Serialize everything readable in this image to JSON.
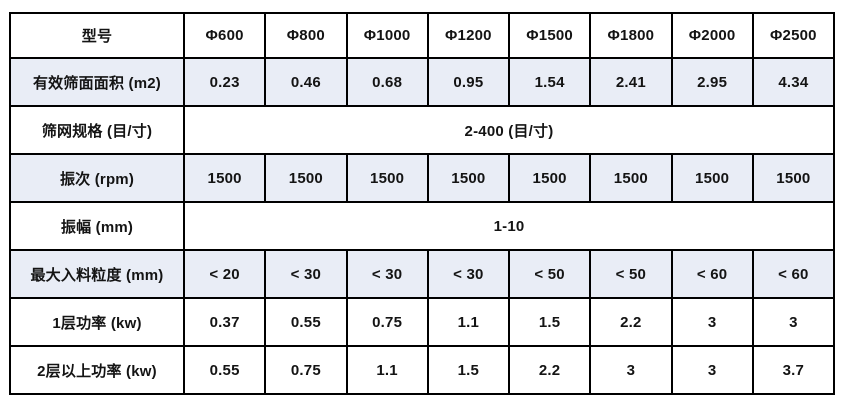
{
  "table": {
    "corner_label": "型号",
    "columns": [
      "Φ600",
      "Φ800",
      "Φ1000",
      "Φ1200",
      "Φ1500",
      "Φ1800",
      "Φ2000",
      "Φ2500"
    ],
    "rows": [
      {
        "label": "有效筛面面积 (m2)",
        "shaded": true,
        "values": [
          "0.23",
          "0.46",
          "0.68",
          "0.95",
          "1.54",
          "2.41",
          "2.95",
          "4.34"
        ]
      },
      {
        "label": "筛网规格 (目/寸)",
        "shaded": false,
        "merged": "2-400 (目/寸)"
      },
      {
        "label": "振次 (rpm)",
        "shaded": true,
        "values": [
          "1500",
          "1500",
          "1500",
          "1500",
          "1500",
          "1500",
          "1500",
          "1500"
        ]
      },
      {
        "label": "振幅 (mm)",
        "shaded": false,
        "merged": "1-10"
      },
      {
        "label": "最大入料粒度 (mm)",
        "shaded": true,
        "values": [
          "< 20",
          "< 30",
          "< 30",
          "< 30",
          "< 50",
          "< 50",
          "< 60",
          "< 60"
        ]
      },
      {
        "label": "1层功率 (kw)",
        "shaded": false,
        "values": [
          "0.37",
          "0.55",
          "0.75",
          "1.1",
          "1.5",
          "2.2",
          "3",
          "3"
        ]
      },
      {
        "label": "2层以上功率 (kw)",
        "shaded": false,
        "values": [
          "0.55",
          "0.75",
          "1.1",
          "1.5",
          "2.2",
          "3",
          "3",
          "3.7"
        ]
      }
    ],
    "colors": {
      "header_bg": "#4a7ebb",
      "header_text": "#ffffff",
      "shaded_row_bg": "#e9edf6",
      "border": "#000000"
    }
  },
  "chart_data": {
    "type": "table",
    "title": "",
    "columns": [
      "型号",
      "Φ600",
      "Φ800",
      "Φ1000",
      "Φ1200",
      "Φ1500",
      "Φ1800",
      "Φ2000",
      "Φ2500"
    ],
    "rows": [
      [
        "有效筛面面积 (m2)",
        "0.23",
        "0.46",
        "0.68",
        "0.95",
        "1.54",
        "2.41",
        "2.95",
        "4.34"
      ],
      [
        "筛网规格 (目/寸)",
        "2-400 (目/寸)"
      ],
      [
        "振次 (rpm)",
        "1500",
        "1500",
        "1500",
        "1500",
        "1500",
        "1500",
        "1500",
        "1500"
      ],
      [
        "振幅 (mm)",
        "1-10"
      ],
      [
        "最大入料粒度 (mm)",
        "< 20",
        "< 30",
        "< 30",
        "< 30",
        "< 50",
        "< 50",
        "< 60",
        "< 60"
      ],
      [
        "1层功率 (kw)",
        "0.37",
        "0.55",
        "0.75",
        "1.1",
        "1.5",
        "2.2",
        "3",
        "3"
      ],
      [
        "2层以上功率 (kw)",
        "0.55",
        "0.75",
        "1.1",
        "1.5",
        "2.2",
        "3",
        "3",
        "3.7"
      ]
    ],
    "layout_hints": {
      "merged_rows": [
        1,
        3
      ],
      "shaded_rows": [
        0,
        2,
        4
      ],
      "header_row_color": "#4a7ebb",
      "grid": true
    }
  }
}
